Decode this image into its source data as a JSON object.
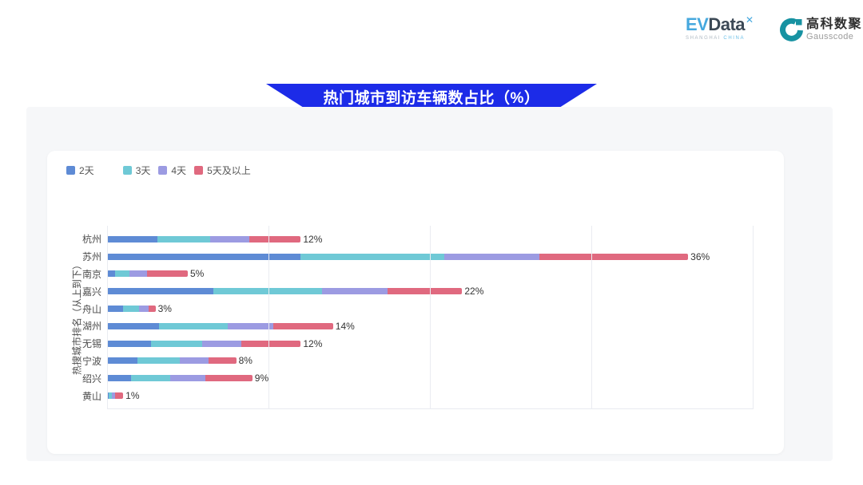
{
  "header": {
    "evdata": {
      "name_part1": "EV",
      "name_part2": "Data",
      "superscript": "✕",
      "sub_part1": "SHANGHAI",
      "sub_part2": "CHINA"
    },
    "gausscode": {
      "cn_name": "高科数聚",
      "en_name": "Gausscode",
      "icon_color": "#1792a2"
    }
  },
  "banner": {
    "title": "热门城市到访车辆数占比（%）",
    "background_color": "#1c2be8"
  },
  "chart_data": {
    "type": "bar",
    "orientation": "horizontal",
    "stacked": true,
    "title": "热门城市到访车辆数占比（%）",
    "ylabel": "热搜城市排名（从上到下）",
    "xlabel": "",
    "xlim": [
      0,
      40
    ],
    "gridlines": [
      0,
      10,
      20,
      30,
      40
    ],
    "grid_on": true,
    "legend_position": "top-left",
    "categories": [
      "杭州",
      "苏州",
      "南京",
      "嘉兴",
      "舟山",
      "湖州",
      "无锡",
      "宁波",
      "绍兴",
      "黄山"
    ],
    "totals_label": [
      "12%",
      "36%",
      "5%",
      "22%",
      "3%",
      "14%",
      "12%",
      "8%",
      "9%",
      "1%"
    ],
    "series": [
      {
        "name": "2天",
        "color": "#5e8bd5",
        "values": [
          3.1,
          12.0,
          0.5,
          6.6,
          1.0,
          3.2,
          2.7,
          1.9,
          1.5,
          0.1
        ]
      },
      {
        "name": "3天",
        "color": "#6fc9d6",
        "values": [
          3.3,
          8.9,
          0.9,
          6.7,
          1.0,
          4.3,
          3.2,
          2.6,
          2.4,
          0.2
        ]
      },
      {
        "name": "4天",
        "color": "#9c9be2",
        "values": [
          2.4,
          5.9,
          1.1,
          4.1,
          0.6,
          2.8,
          2.4,
          1.8,
          2.2,
          0.2
        ]
      },
      {
        "name": "5天及以上",
        "color": "#e0697f",
        "values": [
          3.2,
          9.2,
          2.5,
          4.6,
          0.4,
          3.7,
          3.7,
          1.7,
          2.9,
          0.5
        ]
      }
    ]
  }
}
